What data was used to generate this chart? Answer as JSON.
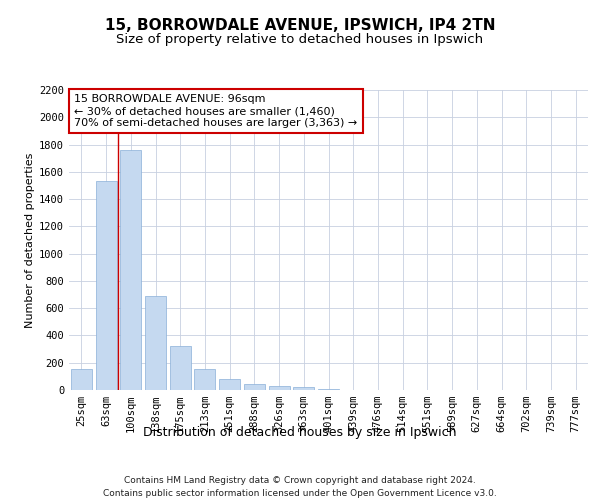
{
  "title_line1": "15, BORROWDALE AVENUE, IPSWICH, IP4 2TN",
  "title_line2": "Size of property relative to detached houses in Ipswich",
  "xlabel": "Distribution of detached houses by size in Ipswich",
  "ylabel": "Number of detached properties",
  "categories": [
    "25sqm",
    "63sqm",
    "100sqm",
    "138sqm",
    "175sqm",
    "213sqm",
    "251sqm",
    "288sqm",
    "326sqm",
    "363sqm",
    "401sqm",
    "439sqm",
    "476sqm",
    "514sqm",
    "551sqm",
    "589sqm",
    "627sqm",
    "664sqm",
    "702sqm",
    "739sqm",
    "777sqm"
  ],
  "values": [
    155,
    1530,
    1760,
    690,
    320,
    155,
    80,
    45,
    30,
    20,
    10,
    0,
    0,
    0,
    0,
    0,
    0,
    0,
    0,
    0,
    0
  ],
  "bar_color": "#c5d9f0",
  "bar_edge_color": "#8ab0d8",
  "grid_color": "#c8d0e0",
  "annotation_box_text": "15 BORROWDALE AVENUE: 96sqm\n← 30% of detached houses are smaller (1,460)\n70% of semi-detached houses are larger (3,363) →",
  "annotation_box_facecolor": "#ffffff",
  "annotation_box_edgecolor": "#cc0000",
  "redline_x": 1.5,
  "ylim": [
    0,
    2200
  ],
  "yticks": [
    0,
    200,
    400,
    600,
    800,
    1000,
    1200,
    1400,
    1600,
    1800,
    2000,
    2200
  ],
  "footer_line1": "Contains HM Land Registry data © Crown copyright and database right 2024.",
  "footer_line2": "Contains public sector information licensed under the Open Government Licence v3.0.",
  "title_fontsize": 11,
  "subtitle_fontsize": 9.5,
  "xlabel_fontsize": 9,
  "ylabel_fontsize": 8,
  "tick_fontsize": 7.5,
  "annotation_fontsize": 8,
  "footer_fontsize": 6.5
}
